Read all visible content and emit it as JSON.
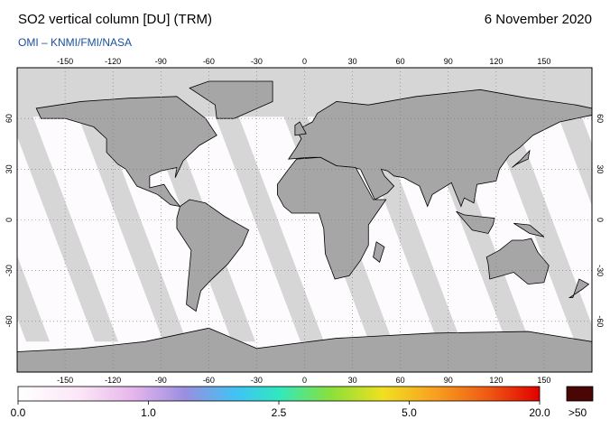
{
  "header": {
    "title": "SO2 vertical column [DU] (TRM)",
    "date": "6 November 2020",
    "credit": "OMI  –  KNMI/FMI/NASA"
  },
  "map": {
    "lon_ticks": [
      -150,
      -120,
      -90,
      -60,
      -30,
      0,
      30,
      60,
      90,
      120,
      150
    ],
    "lat_ticks": [
      -60,
      -30,
      0,
      30,
      60
    ]
  },
  "colorbar": {
    "labels": [
      "0.0",
      "1.0",
      "2.5",
      "5.0",
      "20.0"
    ],
    "overflow_label": ">50"
  }
}
